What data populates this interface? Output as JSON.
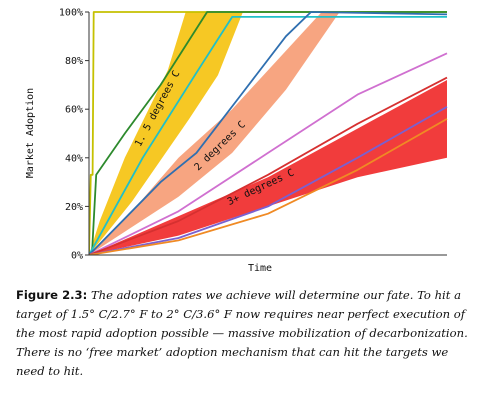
{
  "chart_data": {
    "type": "line",
    "xlabel": "Time",
    "ylabel": "Market Adoption",
    "x_range": [
      0,
      100
    ],
    "ylim": [
      0,
      100
    ],
    "y_ticks": [
      0,
      20,
      40,
      60,
      80,
      100
    ],
    "y_tick_labels": [
      "0%",
      "20%",
      "40%",
      "60%",
      "80%",
      "100%"
    ],
    "grid": false,
    "bands": [
      {
        "label": "1. 5 degrees C",
        "color": "#f5c518",
        "lower": [
          [
            0,
            0
          ],
          [
            12,
            22
          ],
          [
            28,
            56
          ],
          [
            36,
            74
          ],
          [
            43,
            100
          ]
        ],
        "upper": [
          [
            0,
            0
          ],
          [
            3,
            14
          ],
          [
            10,
            40
          ],
          [
            22,
            76
          ],
          [
            27,
            100
          ]
        ]
      },
      {
        "label": "2 degrees C",
        "color": "#f7a07a",
        "lower": [
          [
            0,
            0
          ],
          [
            25,
            24
          ],
          [
            40,
            42
          ],
          [
            55,
            68
          ],
          [
            70,
            100
          ]
        ],
        "upper": [
          [
            0,
            0
          ],
          [
            12,
            18
          ],
          [
            25,
            40
          ],
          [
            40,
            60
          ],
          [
            60,
            92
          ],
          [
            65,
            100
          ]
        ]
      },
      {
        "label": "3+ degrees C",
        "color": "#f03232",
        "lower": [
          [
            0,
            0
          ],
          [
            25,
            8
          ],
          [
            50,
            20
          ],
          [
            75,
            32
          ],
          [
            100,
            40
          ]
        ],
        "upper": [
          [
            0,
            0
          ],
          [
            25,
            16
          ],
          [
            50,
            32
          ],
          [
            75,
            52
          ],
          [
            100,
            72
          ]
        ]
      }
    ],
    "series": [
      {
        "color": "#c5c100",
        "points": [
          [
            0,
            0
          ],
          [
            0.5,
            33
          ],
          [
            1,
            33
          ],
          [
            1.3,
            100
          ],
          [
            100,
            100
          ]
        ]
      },
      {
        "color": "#2d8a2d",
        "points": [
          [
            0,
            0
          ],
          [
            0.8,
            0
          ],
          [
            2,
            33
          ],
          [
            10,
            50
          ],
          [
            20,
            70
          ],
          [
            33,
            100
          ],
          [
            100,
            100
          ]
        ]
      },
      {
        "color": "#20c0c8",
        "points": [
          [
            0,
            0
          ],
          [
            15,
            40
          ],
          [
            30,
            75
          ],
          [
            40,
            98
          ],
          [
            100,
            98
          ]
        ]
      },
      {
        "color": "#2f6fb0",
        "points": [
          [
            0,
            0
          ],
          [
            20,
            30
          ],
          [
            30,
            42
          ],
          [
            42,
            65
          ],
          [
            55,
            90
          ],
          [
            62,
            100
          ],
          [
            100,
            99
          ]
        ]
      },
      {
        "color": "#d070d0",
        "points": [
          [
            0,
            0
          ],
          [
            25,
            18
          ],
          [
            50,
            42
          ],
          [
            75,
            66
          ],
          [
            100,
            83
          ]
        ]
      },
      {
        "color": "#d63030",
        "points": [
          [
            0,
            0
          ],
          [
            25,
            14
          ],
          [
            50,
            33
          ],
          [
            75,
            54
          ],
          [
            100,
            73
          ]
        ]
      },
      {
        "color": "#7a60d0",
        "points": [
          [
            0,
            0
          ],
          [
            25,
            7
          ],
          [
            50,
            20
          ],
          [
            75,
            40
          ],
          [
            100,
            61
          ]
        ]
      },
      {
        "color": "#f08a24",
        "points": [
          [
            0,
            0
          ],
          [
            25,
            6
          ],
          [
            50,
            17
          ],
          [
            75,
            35
          ],
          [
            100,
            56
          ]
        ]
      }
    ]
  },
  "caption": {
    "label": "Figure 2.3:",
    "text": "The adoption rates we achieve will determine our fate. To hit a target of 1.5° C/2.7° F to 2° C/3.6° F now requires near perfect execution of the most rapid adoption possible — massive mobilization of decarbonization. There is no ‘free market’ adoption mechanism that can hit the targets we need to hit."
  }
}
